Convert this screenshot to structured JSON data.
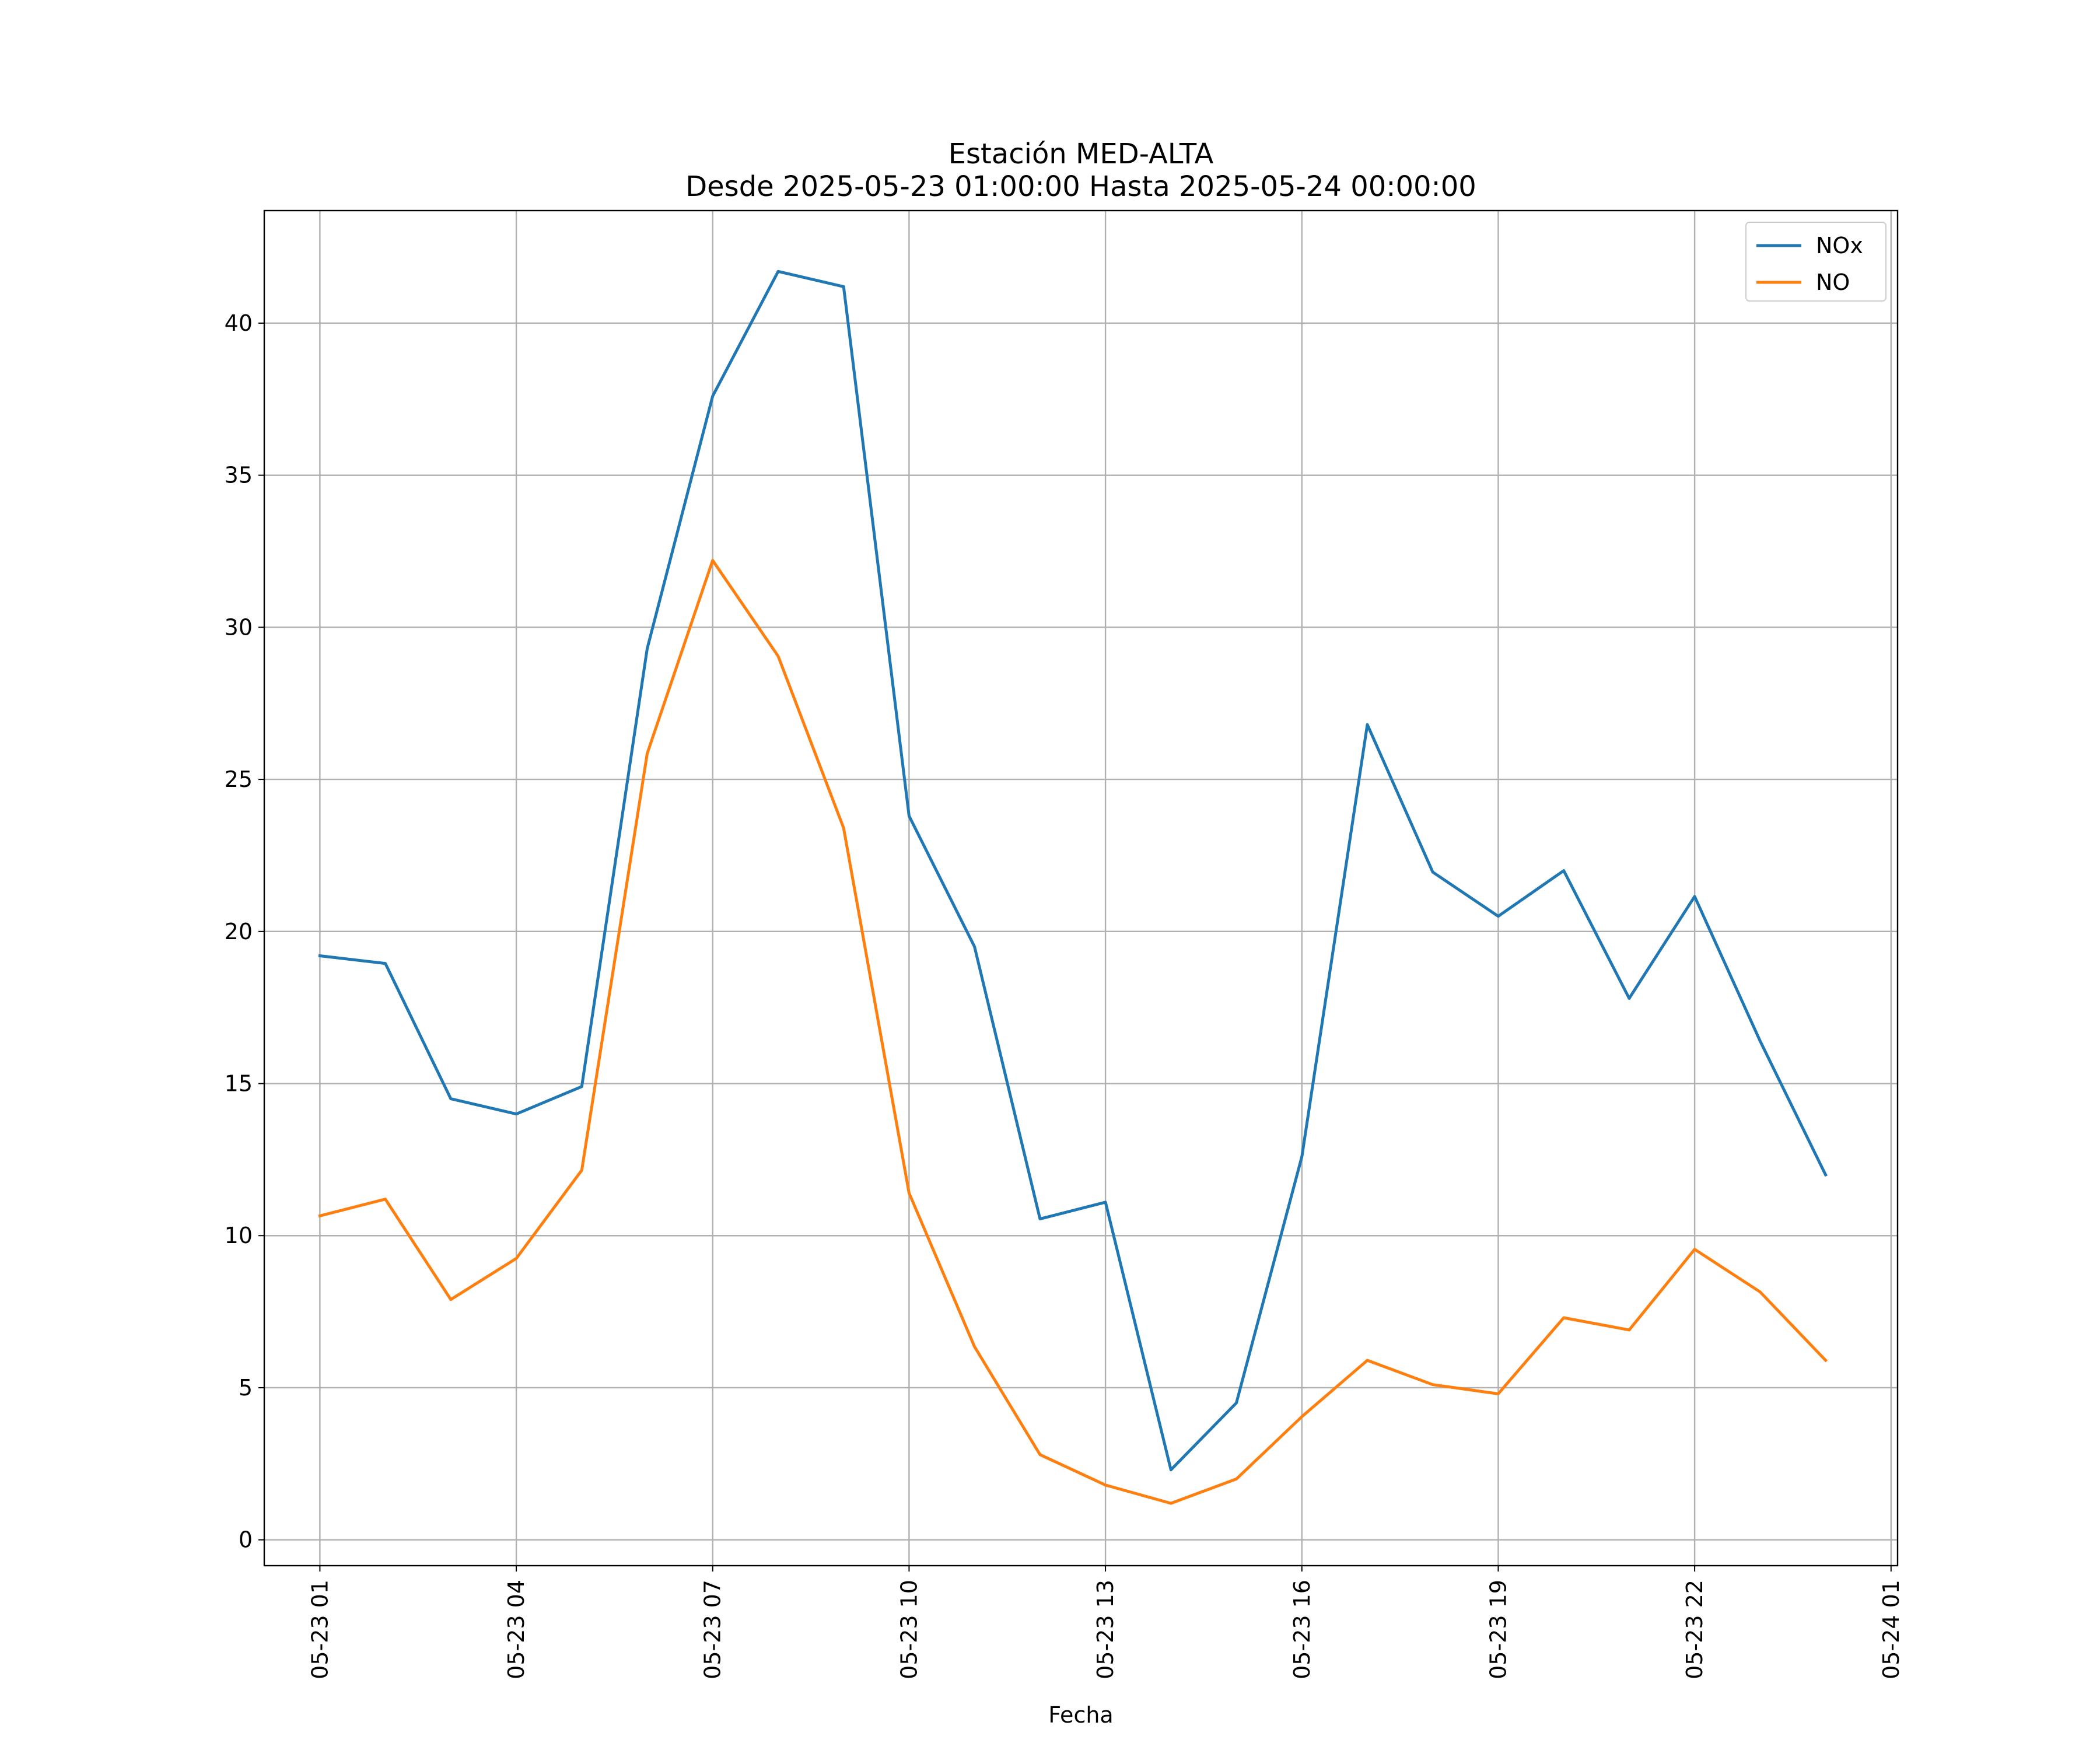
{
  "chart_data": {
    "type": "line",
    "title": "Estación MED-ALTA",
    "subtitle": "Desde 2025-05-23 01:00:00 Hasta 2025-05-24 00:00:00",
    "xlabel": "Fecha",
    "ylabel": "",
    "x": [
      "2025-05-23 01:00",
      "2025-05-23 02:00",
      "2025-05-23 03:00",
      "2025-05-23 04:00",
      "2025-05-23 05:00",
      "2025-05-23 06:00",
      "2025-05-23 07:00",
      "2025-05-23 08:00",
      "2025-05-23 09:00",
      "2025-05-23 10:00",
      "2025-05-23 11:00",
      "2025-05-23 12:00",
      "2025-05-23 13:00",
      "2025-05-23 14:00",
      "2025-05-23 15:00",
      "2025-05-23 16:00",
      "2025-05-23 17:00",
      "2025-05-23 18:00",
      "2025-05-23 19:00",
      "2025-05-23 20:00",
      "2025-05-23 21:00",
      "2025-05-23 22:00",
      "2025-05-23 23:00",
      "2025-05-24 00:00"
    ],
    "xticks": [
      "2025-05-23 01:00",
      "2025-05-23 04:00",
      "2025-05-23 07:00",
      "2025-05-23 10:00",
      "2025-05-23 13:00",
      "2025-05-23 16:00",
      "2025-05-23 19:00",
      "2025-05-23 22:00",
      "2025-05-24 01:00"
    ],
    "xtick_labels": [
      "05-23 01",
      "05-23 04",
      "05-23 07",
      "05-23 10",
      "05-23 13",
      "05-23 16",
      "05-23 19",
      "05-23 22",
      "05-24 01"
    ],
    "xlim": [
      "2025-05-23 00:09",
      "2025-05-24 01:06"
    ],
    "ylim": [
      -0.85,
      43.7
    ],
    "yticks": [
      0,
      5,
      10,
      15,
      20,
      25,
      30,
      35,
      40
    ],
    "grid": true,
    "legend_position": "top-right",
    "series": [
      {
        "name": "NOx",
        "color": "#1f77b4",
        "values": [
          19.2,
          18.95,
          14.5,
          14.0,
          14.9,
          29.3,
          37.6,
          41.7,
          41.2,
          23.8,
          19.5,
          10.55,
          11.1,
          2.3,
          4.5,
          12.6,
          26.8,
          21.95,
          20.5,
          22.0,
          17.8,
          21.15,
          16.4,
          12.0
        ]
      },
      {
        "name": "NO",
        "color": "#ff7f0e",
        "values": [
          10.65,
          11.2,
          7.9,
          9.25,
          12.15,
          25.85,
          32.2,
          29.05,
          23.4,
          11.4,
          6.35,
          2.8,
          1.8,
          1.2,
          2.0,
          4.05,
          5.9,
          5.1,
          4.8,
          7.3,
          6.9,
          9.55,
          8.15,
          5.9
        ]
      }
    ]
  }
}
